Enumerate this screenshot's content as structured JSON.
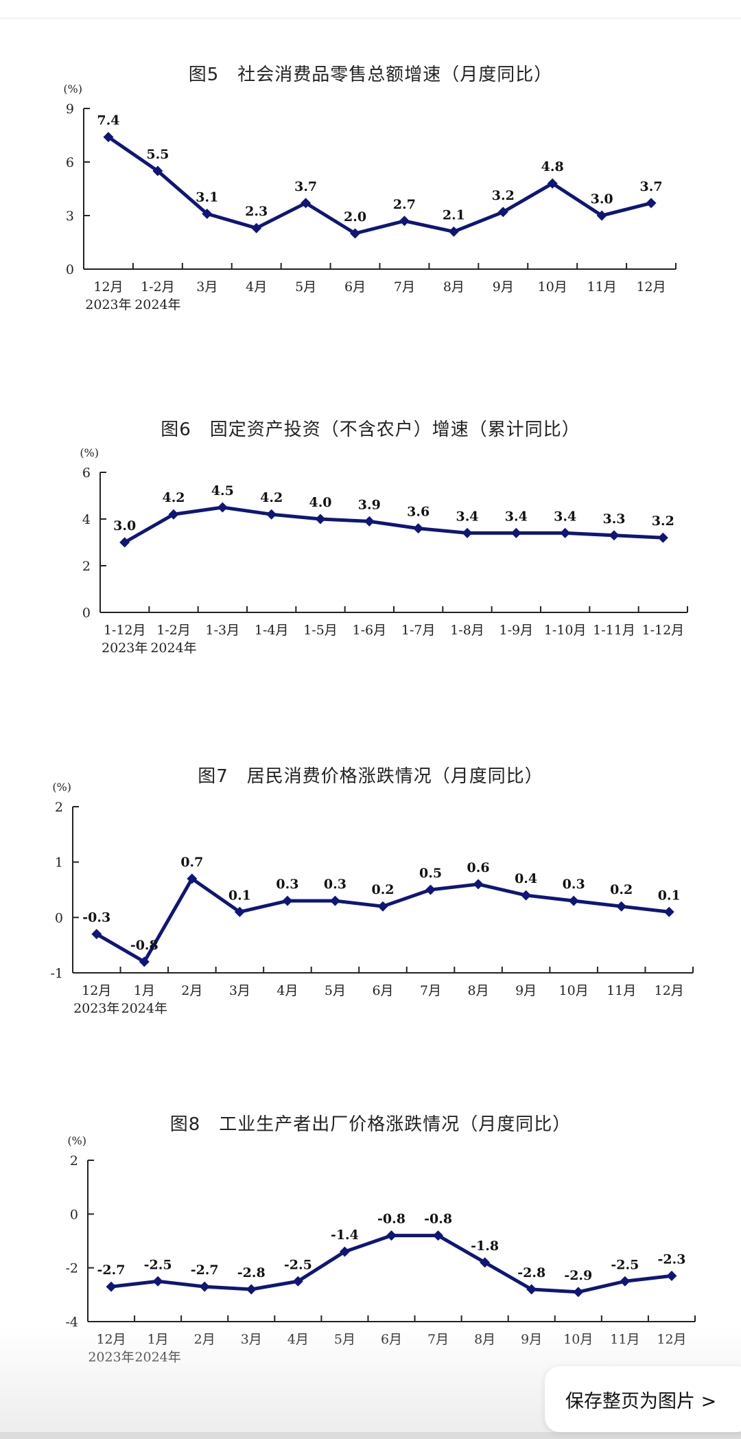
{
  "save_page": {
    "label": "保存整页为图片 >"
  },
  "chart_data": [
    {
      "type": "line",
      "title": "图5　社会消费品零售总额增速（月度同比）",
      "unit": "(%)",
      "categories": [
        "12月",
        "1-2月",
        "3月",
        "4月",
        "5月",
        "6月",
        "7月",
        "8月",
        "9月",
        "10月",
        "11月",
        "12月"
      ],
      "category_years": [
        "2023年",
        "2024年"
      ],
      "values": [
        7.4,
        5.5,
        3.1,
        2.3,
        3.7,
        2.0,
        2.7,
        2.1,
        3.2,
        4.8,
        3.0,
        3.7
      ],
      "value_labels": [
        "7.4",
        "5.5",
        "3.1",
        "2.3",
        "3.7",
        "2.0",
        "2.7",
        "2.1",
        "3.2",
        "4.8",
        "3.0",
        "3.7"
      ],
      "ylim": [
        0,
        9
      ],
      "yticks": [
        0,
        3,
        6,
        9
      ],
      "color": "#0e1679",
      "grid": false
    },
    {
      "type": "line",
      "title": "图6　固定资产投资（不含农户）增速（累计同比）",
      "unit": "(%)",
      "categories": [
        "1-12月",
        "1-2月",
        "1-3月",
        "1-4月",
        "1-5月",
        "1-6月",
        "1-7月",
        "1-8月",
        "1-9月",
        "1-10月",
        "1-11月",
        "1-12月"
      ],
      "category_years": [
        "2023年",
        "2024年"
      ],
      "values": [
        3.0,
        4.2,
        4.5,
        4.2,
        4.0,
        3.9,
        3.6,
        3.4,
        3.4,
        3.4,
        3.3,
        3.2
      ],
      "value_labels": [
        "3.0",
        "4.2",
        "4.5",
        "4.2",
        "4.0",
        "3.9",
        "3.6",
        "3.4",
        "3.4",
        "3.4",
        "3.3",
        "3.2"
      ],
      "ylim": [
        0,
        6
      ],
      "yticks": [
        0,
        2,
        4,
        6
      ],
      "color": "#0e1679",
      "grid": false
    },
    {
      "type": "line",
      "title": "图7　居民消费价格涨跌情况（月度同比）",
      "unit": "(%)",
      "categories": [
        "12月",
        "1月",
        "2月",
        "3月",
        "4月",
        "5月",
        "6月",
        "7月",
        "8月",
        "9月",
        "10月",
        "11月",
        "12月"
      ],
      "category_years": [
        "2023年",
        "2024年"
      ],
      "values": [
        -0.3,
        -0.8,
        0.7,
        0.1,
        0.3,
        0.3,
        0.2,
        0.5,
        0.6,
        0.4,
        0.3,
        0.2,
        0.1
      ],
      "value_labels": [
        "-0.3",
        "-0.8",
        "0.7",
        "0.1",
        "0.3",
        "0.3",
        "0.2",
        "0.5",
        "0.6",
        "0.4",
        "0.3",
        "0.2",
        "0.1"
      ],
      "ylim": [
        -1,
        2
      ],
      "yticks": [
        -1,
        0,
        1,
        2
      ],
      "color": "#0e1679",
      "grid": false
    },
    {
      "type": "line",
      "title": "图8　工业生产者出厂价格涨跌情况（月度同比）",
      "unit": "(%)",
      "categories": [
        "12月",
        "1月",
        "2月",
        "3月",
        "4月",
        "5月",
        "6月",
        "7月",
        "8月",
        "9月",
        "10月",
        "11月",
        "12月"
      ],
      "category_years": [
        "2023年",
        "2024年"
      ],
      "values": [
        -2.7,
        -2.5,
        -2.7,
        -2.8,
        -2.5,
        -1.4,
        -0.8,
        -0.8,
        -1.8,
        -2.8,
        -2.9,
        -2.5,
        -2.3
      ],
      "value_labels": [
        "-2.7",
        "-2.5",
        "-2.7",
        "-2.8",
        "-2.5",
        "-1.4",
        "-0.8",
        "-0.8",
        "-1.8",
        "-2.8",
        "-2.9",
        "-2.5",
        "-2.3"
      ],
      "ylim": [
        -4,
        2
      ],
      "yticks": [
        -4,
        -2,
        0,
        2
      ],
      "color": "#0e1679",
      "grid": false
    }
  ]
}
